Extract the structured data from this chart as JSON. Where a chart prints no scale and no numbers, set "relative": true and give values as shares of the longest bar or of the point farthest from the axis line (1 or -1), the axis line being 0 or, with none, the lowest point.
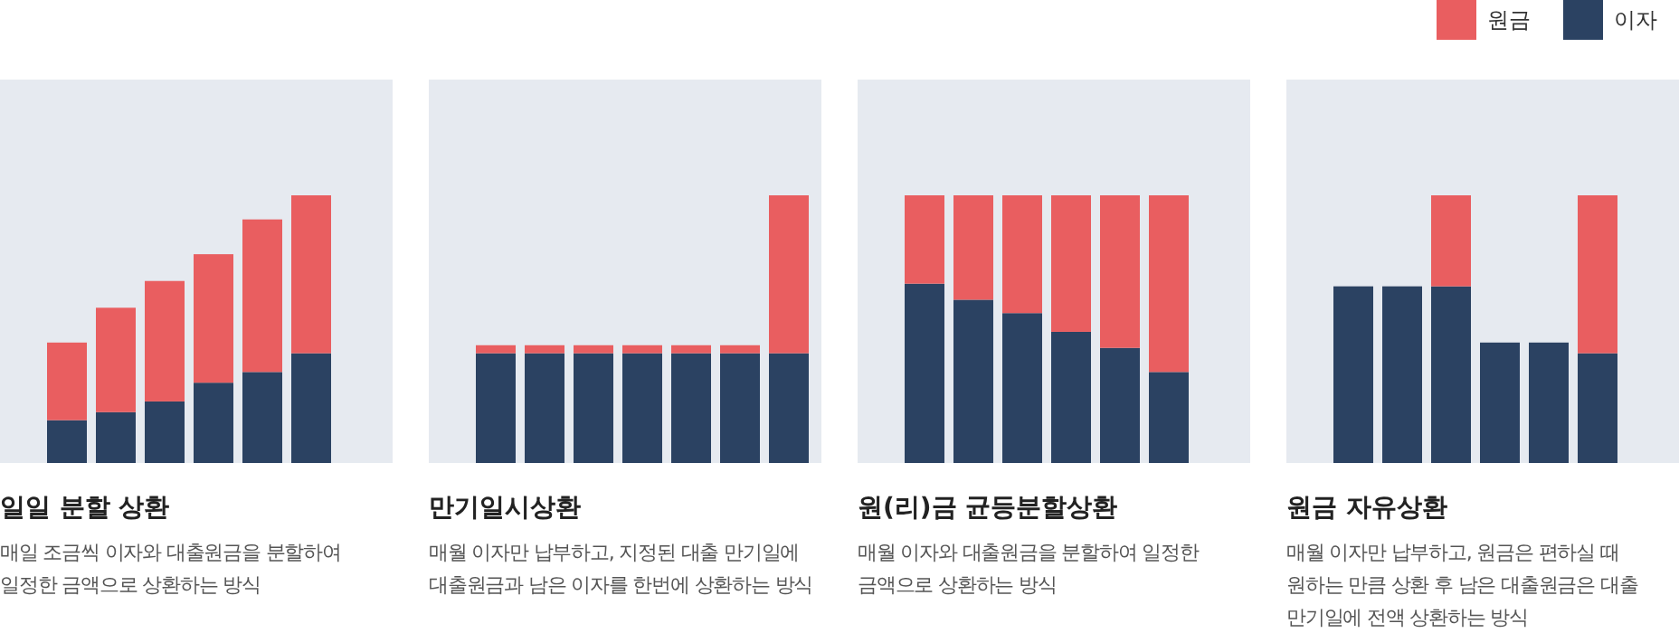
{
  "chart_data": [
    {
      "type": "bar",
      "stacked": true,
      "relative": true,
      "title": "일일 분할 상환",
      "subtitle": "매일 조금씩 이자와 대출원금을 분할하여 일정한 금액으로 상환하는 방식",
      "categories": [
        null,
        null,
        null,
        null,
        null,
        null
      ],
      "series": [
        {
          "color": "#2b4262",
          "values": [
            0.16,
            0.19,
            0.23,
            0.3,
            0.34,
            0.41
          ]
        },
        {
          "color": "#e95e60",
          "values": [
            0.29,
            0.39,
            0.45,
            0.48,
            0.57,
            0.59
          ]
        }
      ]
    },
    {
      "type": "bar",
      "stacked": true,
      "relative": true,
      "title": "만기일시상환",
      "subtitle": "매월 이자만 납부하고, 지정된 대출 만기일에 대출원금과 남은 이자를 한번에 상환하는 방식",
      "categories": [
        null,
        null,
        null,
        null,
        null,
        null,
        null
      ],
      "series": [
        {
          "color": "#2b4262",
          "values": [
            0.41,
            0.41,
            0.41,
            0.41,
            0.41,
            0.41,
            0.41
          ]
        },
        {
          "color": "#e95e60",
          "values": [
            0.03,
            0.03,
            0.03,
            0.03,
            0.03,
            0.03,
            0.59
          ]
        }
      ]
    },
    {
      "type": "bar",
      "stacked": true,
      "relative": true,
      "title": "원(리)금 균등분할상환",
      "subtitle": "매월 이자와 대출원금을 분할하여 일정한 금액으로 상환하는 방식",
      "categories": [
        null,
        null,
        null,
        null,
        null,
        null
      ],
      "series": [
        {
          "color": "#2b4262",
          "values": [
            0.67,
            0.61,
            0.56,
            0.49,
            0.43,
            0.34
          ]
        },
        {
          "color": "#e95e60",
          "values": [
            0.33,
            0.39,
            0.44,
            0.51,
            0.57,
            0.66
          ]
        }
      ]
    },
    {
      "type": "bar",
      "stacked": true,
      "relative": true,
      "legend": "top right",
      "title": "원금 자유상환",
      "subtitle": "매월 이자만 납부하고, 원금은 편하실 때 원하는 만큼 상환 후 남은 대출원금은 대출 만기일에 전액 상환하는 방식",
      "categories": [
        null,
        null,
        null,
        null,
        null,
        null
      ],
      "series": [
        {
          "name": "이자",
          "color": "#2b4262",
          "values": [
            0.66,
            0.66,
            0.66,
            0.45,
            0.45,
            0.41
          ]
        },
        {
          "name": "원금",
          "color": "#e95e60",
          "values": [
            0,
            0,
            0.34,
            0,
            0,
            0.59
          ]
        }
      ]
    }
  ]
}
